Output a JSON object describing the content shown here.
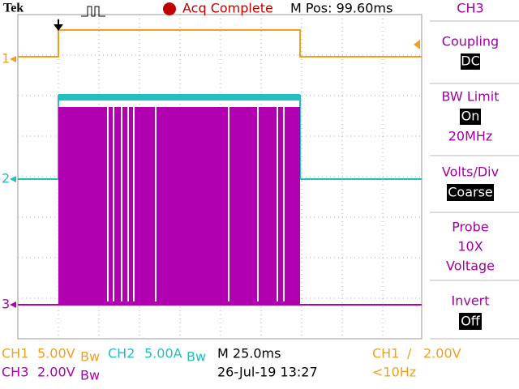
{
  "header": {
    "brand": "Tek",
    "status": "Acq Complete",
    "position": "M Pos: 99.60ms",
    "channel": "CH3"
  },
  "menu": [
    {
      "label": "Coupling",
      "value": "DC"
    },
    {
      "label": "BW Limit",
      "value": "On",
      "extra": "20MHz"
    },
    {
      "label": "Volts/Div",
      "value": "Coarse"
    },
    {
      "label": "Probe",
      "lines": [
        "10X",
        "Voltage"
      ]
    },
    {
      "label": "Invert",
      "value": "Off"
    }
  ],
  "markers": [
    "1",
    "2",
    "3"
  ],
  "footer": {
    "ch1": {
      "name": "CH1",
      "scale": "5.00V",
      "bw": "Bw"
    },
    "ch2": {
      "name": "CH2",
      "scale": "5.00A",
      "bw": "Bw"
    },
    "ch3": {
      "name": "CH3",
      "scale": "2.00V",
      "bw": "Bw"
    },
    "timebase": "M 25.0ms",
    "date": "26-Jul-19 13:27",
    "trigger": {
      "source": "CH1",
      "slope": "∕",
      "level": "2.00V"
    },
    "frequency": "<10Hz"
  }
}
